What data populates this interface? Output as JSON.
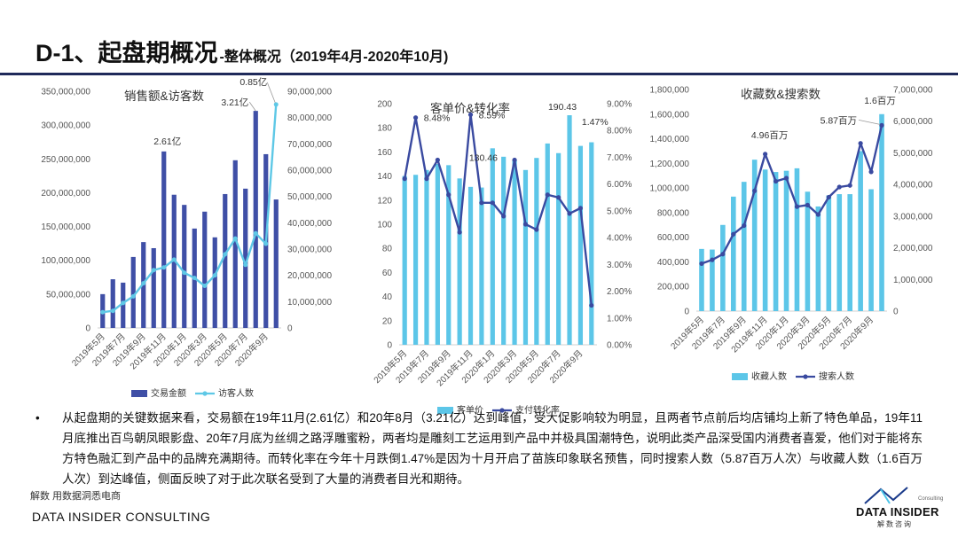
{
  "header": {
    "title": "D-1、起盘期概况",
    "subtitle": "-整体概况（2019年4月-2020年10月)"
  },
  "colors": {
    "navy_bar": "#3f4fa6",
    "light_line": "#5ec8e6",
    "cyan_bar": "#5cc6e8",
    "navy_line": "#3a4aa0",
    "title_rule": "#1f2a5a"
  },
  "chart_data": [
    {
      "type": "bar",
      "title": "销售额&访客数",
      "categories": [
        "2019年5月",
        "2019年6月",
        "2019年7月",
        "2019年8月",
        "2019年9月",
        "2019年10月",
        "2019年11月",
        "2019年12月",
        "2020年1月",
        "2020年2月",
        "2020年3月",
        "2020年4月",
        "2020年5月",
        "2020年6月",
        "2020年7月",
        "2020年8月",
        "2020年9月",
        "2020年10月"
      ],
      "tick_labels": [
        "2019年5月",
        "2019年7月",
        "2019年9月",
        "2019年11月",
        "2020年1月",
        "2020年3月",
        "2020年5月",
        "2020年7月",
        "2020年9月"
      ],
      "series": [
        {
          "name": "交易金额",
          "type": "bar",
          "axis": "left",
          "values": [
            50000000,
            72000000,
            67000000,
            105000000,
            127000000,
            118000000,
            261000000,
            197000000,
            182000000,
            147000000,
            172000000,
            134000000,
            198000000,
            248000000,
            206000000,
            321000000,
            257000000,
            190000000
          ]
        },
        {
          "name": "访客人数",
          "type": "line",
          "axis": "right",
          "values": [
            6000000,
            6500000,
            9500000,
            12000000,
            17000000,
            22000000,
            23000000,
            26000000,
            21000000,
            19000000,
            16000000,
            20000000,
            28000000,
            34000000,
            24000000,
            36000000,
            32000000,
            85000000
          ]
        }
      ],
      "left_axis": {
        "min": 0,
        "max": 350000000,
        "ticks": [
          "0",
          "50,000,000",
          "100,000,000",
          "150,000,000",
          "200,000,000",
          "250,000,000",
          "300,000,000",
          "350,000,000"
        ]
      },
      "right_axis": {
        "min": 0,
        "max": 90000000,
        "ticks": [
          "0",
          "10,000,000",
          "20,000,000",
          "30,000,000",
          "40,000,000",
          "50,000,000",
          "60,000,000",
          "70,000,000",
          "80,000,000",
          "90,000,000"
        ]
      },
      "annotations": [
        {
          "text": "2.61亿",
          "index": 6
        },
        {
          "text": "3.21亿",
          "index": 15
        },
        {
          "text": "0.85亿",
          "index": 17
        }
      ],
      "legend": "bottom"
    },
    {
      "type": "bar",
      "title": "客单价&转化率",
      "categories": [
        "2019年5月",
        "2019年6月",
        "2019年7月",
        "2019年8月",
        "2019年9月",
        "2019年10月",
        "2019年11月",
        "2019年12月",
        "2020年1月",
        "2020年2月",
        "2020年3月",
        "2020年4月",
        "2020年5月",
        "2020年6月",
        "2020年7月",
        "2020年8月",
        "2020年9月",
        "2020年10月"
      ],
      "tick_labels": [
        "2019年5月",
        "2019年7月",
        "2019年9月",
        "2019年11月",
        "2020年1月",
        "2020年3月",
        "2020年5月",
        "2020年7月",
        "2020年9月"
      ],
      "series": [
        {
          "name": "客单价",
          "type": "bar",
          "axis": "left",
          "values": [
            140,
            141,
            145,
            150,
            149,
            138,
            131,
            130.46,
            163,
            156,
            153,
            145,
            155,
            167,
            159,
            190.43,
            165,
            168
          ]
        },
        {
          "name": "支付转化率",
          "type": "line",
          "axis": "right",
          "values": [
            6.2,
            8.48,
            6.2,
            6.9,
            5.6,
            4.2,
            8.59,
            5.3,
            5.3,
            4.8,
            6.9,
            4.5,
            4.3,
            5.6,
            5.5,
            4.9,
            5.1,
            1.47
          ]
        }
      ],
      "left_axis": {
        "min": 0,
        "max": 200,
        "ticks": [
          "0",
          "20",
          "40",
          "60",
          "80",
          "100",
          "120",
          "140",
          "160",
          "180",
          "200"
        ]
      },
      "right_axis": {
        "min": 0,
        "max": 9,
        "ticks": [
          "0.00%",
          "1.00%",
          "2.00%",
          "3.00%",
          "4.00%",
          "5.00%",
          "6.00%",
          "7.00%",
          "8.00%",
          "9.00%"
        ]
      },
      "annotations": [
        {
          "text": "8.48%",
          "index": 1
        },
        {
          "text": "8.59%",
          "index": 6
        },
        {
          "text": "130.46",
          "index": 7
        },
        {
          "text": "190.43",
          "index": 15
        },
        {
          "text": "1.47%",
          "index": 17
        }
      ],
      "legend": "bottom"
    },
    {
      "type": "bar",
      "title": "收藏数&搜索数",
      "categories": [
        "2019年5月",
        "2019年6月",
        "2019年7月",
        "2019年8月",
        "2019年9月",
        "2019年10月",
        "2019年11月",
        "2019年12月",
        "2020年1月",
        "2020年2月",
        "2020年3月",
        "2020年4月",
        "2020年5月",
        "2020年6月",
        "2020年7月",
        "2020年8月",
        "2020年9月",
        "2020年10月"
      ],
      "tick_labels": [
        "2019年5月",
        "2019年7月",
        "2019年9月",
        "2019年11月",
        "2020年1月",
        "2020年3月",
        "2020年5月",
        "2020年7月",
        "2020年9月"
      ],
      "series": [
        {
          "name": "收藏人数",
          "type": "bar",
          "axis": "left",
          "values": [
            505000,
            500000,
            700000,
            930000,
            1050000,
            1230000,
            1150000,
            1130000,
            1140000,
            1160000,
            970000,
            850000,
            940000,
            950000,
            950000,
            1300000,
            990000,
            1600000
          ]
        },
        {
          "name": "搜索人数",
          "type": "line",
          "axis": "right",
          "values": [
            1500000,
            1620000,
            1800000,
            2430000,
            2700000,
            3800000,
            4960000,
            4100000,
            4200000,
            3300000,
            3350000,
            3050000,
            3600000,
            3920000,
            3970000,
            5300000,
            4400000,
            5870000
          ]
        }
      ],
      "left_axis": {
        "min": 0,
        "max": 1800000,
        "ticks": [
          "0",
          "200,000",
          "400,000",
          "600,000",
          "800,000",
          "1,000,000",
          "1,200,000",
          "1,400,000",
          "1,600,000",
          "1,800,000"
        ]
      },
      "right_axis": {
        "min": 0,
        "max": 7000000,
        "ticks": [
          "0",
          "1,000,000",
          "2,000,000",
          "3,000,000",
          "4,000,000",
          "5,000,000",
          "6,000,000",
          "7,000,000"
        ]
      },
      "annotations": [
        {
          "text": "4.96百万",
          "index": 6
        },
        {
          "text": "5.87百万",
          "index": 17,
          "side": "left"
        },
        {
          "text": "1.6百万",
          "index": 17,
          "side": "top"
        }
      ],
      "legend": "bottom"
    }
  ],
  "body": {
    "bullet": "•",
    "text": "从起盘期的关键数据来看，交易额在19年11月(2.61亿）和20年8月（3.21亿）达到峰值，受大促影响较为明显，且两者节点前后均店铺均上新了特色单品，19年11月底推出百鸟朝凤眼影盘、20年7月底为丝绸之路浮雕蜜粉，两者均是雕刻工艺运用到产品中并极具国潮特色，说明此类产品深受国内消费者喜爱，他们对于能将东方特色融汇到产品中的品牌充满期待。而转化率在今年十月跌倒1.47%是因为十月开启了苗族印象联名预售，同时搜索人数（5.87百万人次）与收藏人数（1.6百万人次）到达峰值，侧面反映了对于此次联名受到了大量的消费者目光和期待。"
  },
  "footer": {
    "source": "解数 用数据洞悉电商",
    "company": "DATA INSIDER CONSULTING",
    "logo_name": "DATA INSIDER",
    "logo_cn": "解数咨询",
    "logo_consulting": "Consulting"
  }
}
